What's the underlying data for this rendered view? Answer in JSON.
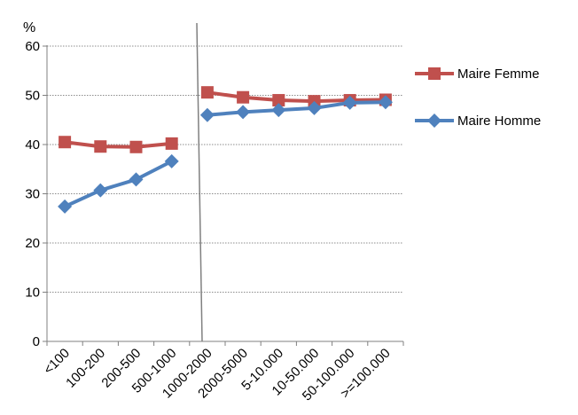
{
  "chart_data": {
    "type": "line",
    "title": "",
    "xlabel": "",
    "ylabel": "%",
    "ylim": [
      0,
      60
    ],
    "yticks": [
      "0",
      "10",
      "20",
      "30",
      "40",
      "50",
      "60"
    ],
    "grid": true,
    "legend_position": "right",
    "categories": [
      "<100",
      "100-200",
      "200-500",
      "500-1000",
      "1000-2000",
      "2000-5000",
      "5-10.000",
      "10-50.000",
      "50-100.000",
      ">=100.000"
    ],
    "series": [
      {
        "name": "Maire Femme",
        "color": "#c0504d",
        "marker": "square",
        "segments": [
          {
            "values": [
              40.5,
              39.6,
              39.5,
              40.2
            ]
          },
          {
            "values": [
              50.6,
              49.6,
              49.0,
              48.8,
              49.0,
              49.1
            ]
          }
        ]
      },
      {
        "name": "Maire Homme",
        "color": "#4f81bd",
        "marker": "diamond",
        "segments": [
          {
            "values": [
              27.4,
              30.7,
              32.9,
              36.6
            ]
          },
          {
            "values": [
              46.0,
              46.6,
              47.0,
              47.4,
              48.5,
              48.6
            ]
          }
        ]
      }
    ]
  }
}
